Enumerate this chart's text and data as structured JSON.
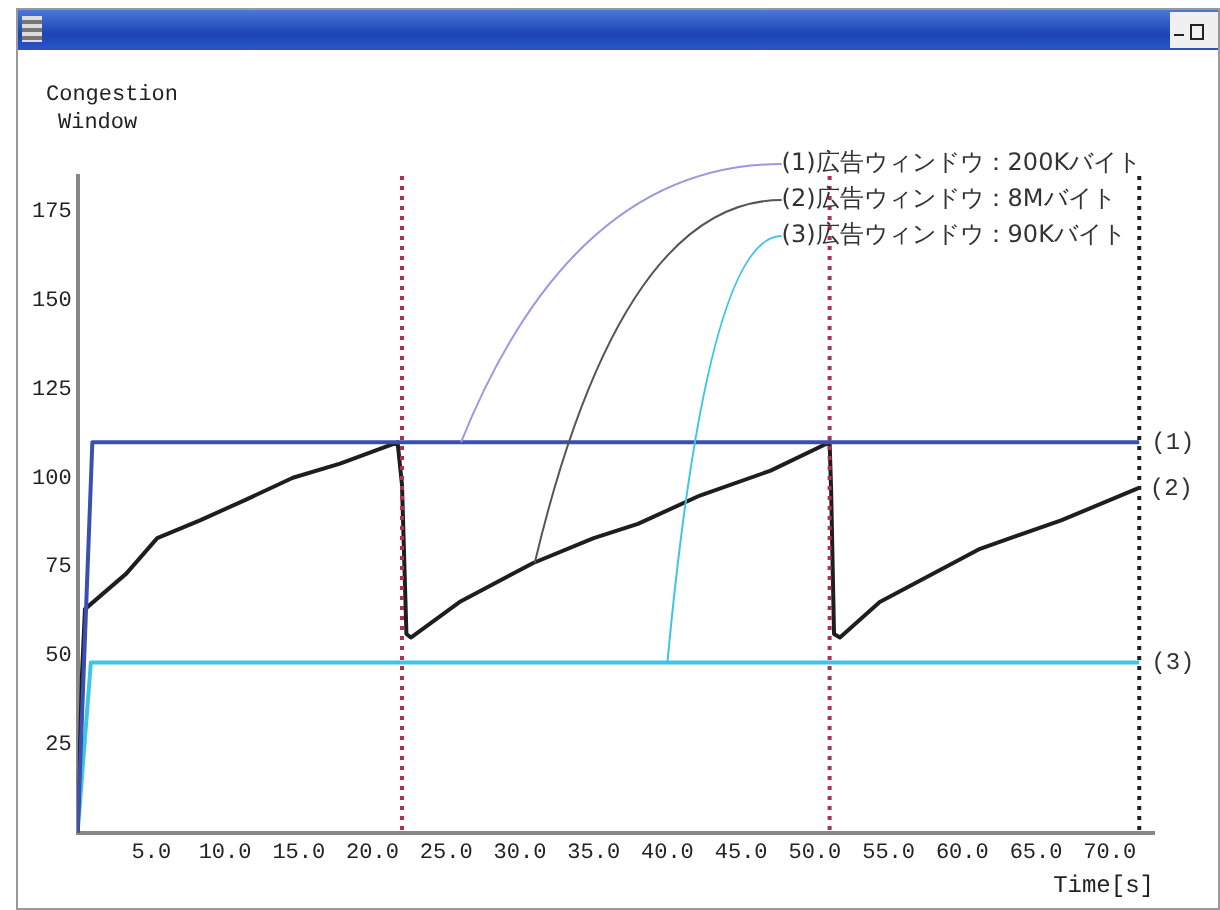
{
  "chart_data": {
    "type": "line",
    "ylabel": "Congestion Window",
    "xlabel": "Time[s]",
    "xlim": [
      0,
      73
    ],
    "ylim": [
      0,
      185
    ],
    "xticks": [
      {
        "value": 5,
        "label": "5.0"
      },
      {
        "value": 10,
        "label": "10.0"
      },
      {
        "value": 15,
        "label": "15.0"
      },
      {
        "value": 20,
        "label": "20.0"
      },
      {
        "value": 25,
        "label": "25.0"
      },
      {
        "value": 30,
        "label": "30.0"
      },
      {
        "value": 35,
        "label": "35.0"
      },
      {
        "value": 40,
        "label": "40.0"
      },
      {
        "value": 45,
        "label": "45.0"
      },
      {
        "value": 50,
        "label": "50.0"
      },
      {
        "value": 55,
        "label": "55.0"
      },
      {
        "value": 60,
        "label": "60.0"
      },
      {
        "value": 65,
        "label": "65.0"
      },
      {
        "value": 70,
        "label": "70.0"
      }
    ],
    "yticks": [
      25,
      50,
      75,
      100,
      125,
      150,
      175
    ],
    "grid": false,
    "legend": false,
    "marker": "none",
    "line_style": "solid",
    "series": [
      {
        "name": "(1)",
        "color": "#3a4fb0",
        "x": [
          0,
          1.0,
          72
        ],
        "values": [
          0,
          110,
          110
        ]
      },
      {
        "name": "(2)",
        "color": "#1e1e1e",
        "x": [
          0,
          0.3,
          0.5,
          3.3,
          5.4,
          8.3,
          11.5,
          14.6,
          17.8,
          21.7,
          22.0,
          22.3,
          22.6,
          25.9,
          30.9,
          35.0,
          38.0,
          42.2,
          47.0,
          51.0,
          51.1,
          51.3,
          51.7,
          54.4,
          61.2,
          66.7,
          71.9
        ],
        "values": [
          0,
          45,
          63,
          73,
          83,
          88,
          94,
          100,
          104,
          110,
          98,
          56,
          55,
          65,
          76,
          83,
          87,
          95,
          102,
          110,
          97,
          56,
          55,
          65,
          80,
          88,
          97
        ]
      },
      {
        "name": "(3)",
        "color": "#3cc6e6",
        "x": [
          0,
          0.9,
          72
        ],
        "values": [
          0,
          48,
          48
        ]
      }
    ],
    "ref_lines": [
      {
        "axis": "x",
        "value": 22.0,
        "color": "#b03050",
        "line_style": "dotted"
      },
      {
        "axis": "x",
        "value": 51.0,
        "color": "#b03050",
        "line_style": "dotted"
      },
      {
        "axis": "x",
        "value": 72,
        "color": "#222222",
        "line_style": "dotted"
      }
    ],
    "annotations": [
      {
        "text": "(1)広告ウィンドウ：200Kバイト",
        "x": 26,
        "y": 110
      },
      {
        "text": "(2)広告ウィンドウ：8Mバイト",
        "x": 31,
        "y": 76
      },
      {
        "text": "(3)広告ウィンドウ：90Kバイト",
        "x": 40,
        "y": 48
      }
    ]
  }
}
